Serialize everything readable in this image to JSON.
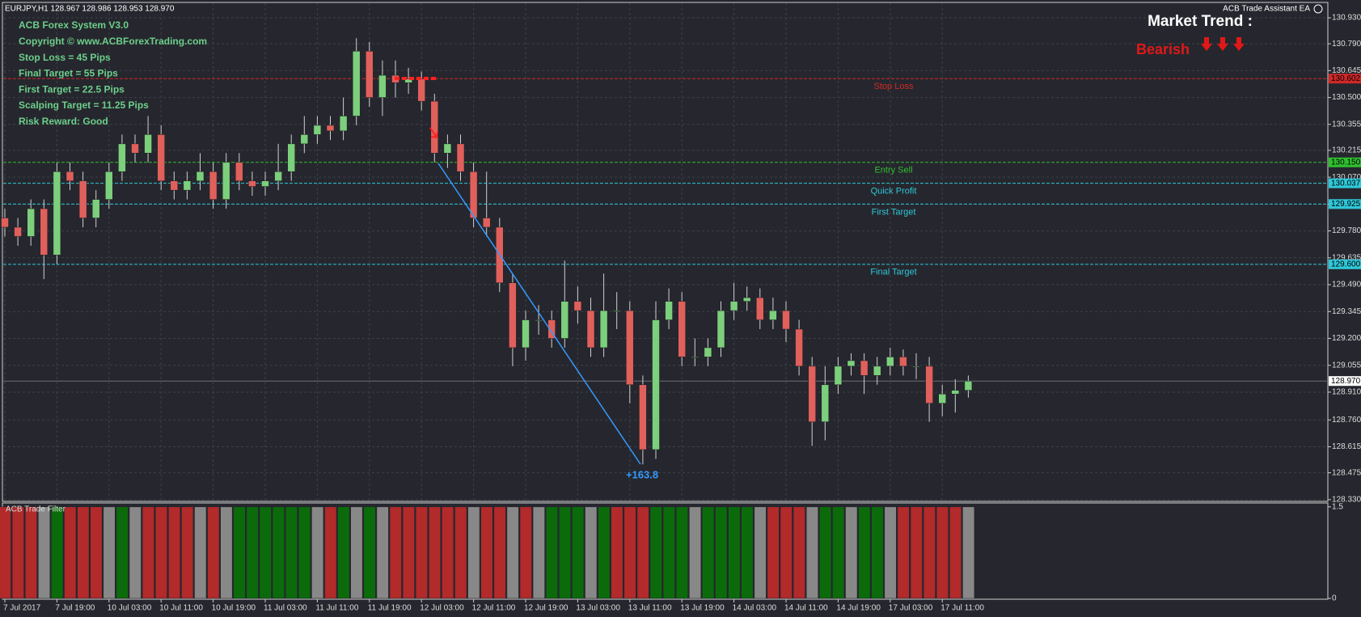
{
  "header": "EURJPY,H1  128.967 128.986 128.953 128.970",
  "ea_name": "ACB Trade Assistant EA",
  "market_trend": "Market Trend :",
  "trend": "Bearish",
  "info": [
    "ACB Forex System V3.0",
    "Copyright ©  www.ACBForexTrading.com",
    "Stop Loss = 45 Pips",
    "Final Target = 55 Pips",
    "First Target = 22.5 Pips",
    "Scalping Target = 11.25 Pips",
    "Risk Reward: Good"
  ],
  "chart_data": [
    {
      "type": "candlestick",
      "categories": [
        "7 Jul 2017",
        null,
        null,
        null,
        "7 Jul 19:00",
        null,
        null,
        null,
        "10 Jul 03:00",
        null,
        null,
        null,
        "10 Jul 11:00",
        null,
        null,
        null,
        "10 Jul 19:00",
        null,
        null,
        null,
        "11 Jul 03:00",
        null,
        null,
        null,
        "11 Jul 11:00",
        null,
        null,
        null,
        "11 Jul 19:00",
        null,
        null,
        null,
        "12 Jul 03:00",
        null,
        null,
        null,
        "12 Jul 11:00",
        null,
        null,
        null,
        "12 Jul 19:00",
        null,
        null,
        null,
        "13 Jul 03:00",
        null,
        null,
        null,
        "13 Jul 11:00",
        null,
        null,
        null,
        "13 Jul 19:00",
        null,
        null,
        null,
        "14 Jul 03:00",
        null,
        null,
        null,
        "14 Jul 11:00",
        null,
        null,
        null,
        "14 Jul 19:00",
        null,
        null,
        null,
        "17 Jul 03:00",
        null,
        null,
        null,
        "17 Jul 11:00",
        null,
        null
      ],
      "open": [
        129.85,
        129.8,
        129.75,
        129.9,
        129.65,
        130.1,
        130.05,
        129.85,
        129.95,
        130.1,
        130.25,
        130.2,
        130.3,
        130.05,
        130.0,
        130.05,
        130.1,
        129.95,
        130.15,
        130.05,
        130.02,
        130.05,
        130.1,
        130.25,
        130.3,
        130.35,
        130.32,
        130.4,
        130.75,
        130.5,
        130.62,
        130.58,
        130.6,
        130.48,
        130.2,
        130.25,
        130.1,
        129.85,
        129.8,
        129.5,
        129.15,
        129.3,
        129.3,
        129.2,
        129.4,
        129.35,
        129.15,
        129.35,
        129.35,
        128.95,
        128.6,
        129.3,
        129.4,
        129.1,
        129.1,
        129.15,
        129.35,
        129.4,
        129.42,
        129.3,
        129.35,
        129.25,
        129.05,
        128.75,
        128.95,
        129.05,
        129.08,
        129.0,
        129.05,
        129.1,
        129.05,
        129.05,
        128.85,
        128.9,
        128.92
      ],
      "high": [
        129.9,
        129.85,
        129.95,
        129.95,
        130.15,
        130.15,
        130.1,
        130.0,
        130.15,
        130.3,
        130.3,
        130.4,
        130.35,
        130.1,
        130.1,
        130.2,
        130.15,
        130.2,
        130.2,
        130.1,
        130.1,
        130.25,
        130.3,
        130.4,
        130.4,
        130.4,
        130.5,
        130.82,
        130.8,
        130.7,
        130.7,
        130.66,
        130.64,
        130.52,
        130.3,
        130.3,
        130.15,
        130.1,
        129.85,
        129.55,
        129.35,
        129.38,
        129.35,
        129.62,
        129.48,
        129.42,
        129.55,
        129.45,
        129.4,
        129.0,
        129.4,
        129.47,
        129.45,
        129.2,
        129.2,
        129.4,
        129.5,
        129.48,
        129.47,
        129.42,
        129.4,
        129.3,
        129.1,
        129.05,
        129.1,
        129.12,
        129.12,
        129.1,
        129.15,
        129.14,
        129.12,
        129.1,
        128.95,
        128.98,
        129.0
      ],
      "low": [
        129.75,
        129.7,
        129.7,
        129.52,
        129.6,
        130.0,
        129.8,
        129.8,
        129.9,
        130.05,
        130.15,
        130.15,
        130.0,
        129.95,
        129.95,
        130.0,
        129.9,
        129.9,
        130.0,
        129.97,
        129.97,
        130.0,
        130.05,
        130.2,
        130.25,
        130.27,
        130.27,
        130.35,
        130.45,
        130.4,
        130.5,
        130.52,
        130.43,
        130.15,
        130.12,
        130.05,
        129.8,
        129.75,
        129.45,
        129.05,
        129.08,
        129.22,
        129.15,
        129.15,
        129.28,
        129.1,
        129.1,
        129.25,
        128.85,
        128.52,
        128.55,
        129.25,
        129.05,
        129.05,
        129.05,
        129.1,
        129.3,
        129.35,
        129.25,
        129.25,
        129.18,
        129.0,
        128.62,
        128.65,
        128.9,
        129.0,
        128.9,
        128.95,
        129.0,
        129.0,
        128.98,
        128.75,
        128.78,
        128.8,
        128.88
      ],
      "close": [
        129.8,
        129.75,
        129.9,
        129.65,
        130.1,
        130.05,
        129.85,
        129.95,
        130.1,
        130.25,
        130.2,
        130.3,
        130.05,
        130.0,
        130.05,
        130.1,
        129.95,
        130.15,
        130.05,
        130.02,
        130.05,
        130.1,
        130.25,
        130.3,
        130.35,
        130.32,
        130.4,
        130.75,
        130.5,
        130.62,
        130.58,
        130.6,
        130.48,
        130.2,
        130.25,
        130.1,
        129.85,
        129.8,
        129.5,
        129.15,
        129.3,
        129.3,
        129.2,
        129.4,
        129.35,
        129.15,
        129.35,
        129.35,
        128.95,
        128.6,
        129.3,
        129.4,
        129.1,
        129.1,
        129.15,
        129.35,
        129.4,
        129.42,
        129.3,
        129.35,
        129.25,
        129.05,
        128.75,
        128.95,
        129.05,
        129.08,
        129.0,
        129.05,
        129.1,
        129.05,
        129.05,
        128.85,
        128.9,
        128.92,
        128.97
      ],
      "up_color": "#7ccf7c",
      "down_color": "#e0605c",
      "wick_color": "#d0d0d0",
      "ylim": [
        128.325,
        131.0
      ],
      "yticks": [
        {
          "value": 130.93,
          "label": "130.930"
        },
        {
          "value": 130.79,
          "label": "130.790"
        },
        130.645,
        {
          "value": 130.5,
          "label": "130.500"
        },
        130.355,
        130.215,
        {
          "value": 130.07,
          "label": "130.070"
        },
        129.925,
        {
          "value": 129.78,
          "label": "129.780"
        },
        129.635,
        {
          "value": 129.49,
          "label": "129.490"
        },
        129.345,
        {
          "value": 129.2,
          "label": "129.200"
        },
        129.055,
        {
          "value": 128.91,
          "label": "128.910"
        },
        {
          "value": 128.76,
          "label": "128.760"
        },
        128.615,
        128.475,
        {
          "value": 128.33,
          "label": "128.330"
        }
      ],
      "grid": true,
      "levels": [
        {
          "name": "Stop Loss",
          "price": 130.602,
          "color": "#d02828"
        },
        {
          "name": "Entry Sell",
          "price": {
            "value": 130.15,
            "label": "130.150"
          },
          "color": "#2fbf2f"
        },
        {
          "name": "Quick Profit",
          "price": 130.037,
          "color": "#2ec8d8"
        },
        {
          "name": "First Target",
          "price": 129.925,
          "color": "#2ec8d8"
        },
        {
          "name": "Final Target",
          "price": {
            "value": 129.6,
            "label": "129.600"
          },
          "color": "#2ec8d8"
        }
      ],
      "current": {
        "value": 128.97,
        "label": "128.970"
      },
      "annotation": "+163.8"
    },
    {
      "type": "bar",
      "title": "ACB Trade Filter",
      "values": [
        1.5,
        1.5,
        1.5,
        1.5,
        1.5,
        1.5,
        1.5,
        1.5,
        1.5,
        1.5,
        1.5,
        1.5,
        1.5,
        1.5,
        1.5,
        1.5,
        1.5,
        1.5,
        1.5,
        1.5,
        1.5,
        1.5,
        1.5,
        1.5,
        1.5,
        1.5,
        1.5,
        1.5,
        1.5,
        1.5,
        1.5,
        1.5,
        1.5,
        1.5,
        1.5,
        1.5,
        1.5,
        1.5,
        1.5,
        1.5,
        1.5,
        1.5,
        1.5,
        1.5,
        1.5,
        1.5,
        1.5,
        1.5,
        1.5,
        1.5,
        1.5,
        1.5,
        1.5,
        1.5,
        1.5,
        1.5,
        1.5,
        1.5,
        1.5,
        1.5,
        1.5,
        1.5,
        1.5,
        1.5,
        1.5,
        1.5,
        1.5,
        1.5,
        1.5,
        1.5,
        1.5,
        1.5,
        1.5,
        1.5,
        1.5
      ],
      "colors": [
        "#b22a2a",
        "#b22a2a",
        "#b22a2a",
        "#888888",
        "#0b6b0b",
        "#b22a2a",
        "#b22a2a",
        "#b22a2a",
        "#888888",
        "#0b6b0b",
        "#888888",
        "#b22a2a",
        "#b22a2a",
        "#b22a2a",
        "#b22a2a",
        "#888888",
        "#b22a2a",
        "#888888",
        "#0b6b0b",
        "#0b6b0b",
        "#0b6b0b",
        "#0b6b0b",
        "#0b6b0b",
        "#0b6b0b",
        "#888888",
        "#b22a2a",
        "#0b6b0b",
        "#888888",
        "#0b6b0b",
        "#888888",
        "#b22a2a",
        "#b22a2a",
        "#b22a2a",
        "#b22a2a",
        "#b22a2a",
        "#b22a2a",
        "#888888",
        "#b22a2a",
        "#b22a2a",
        "#888888",
        "#b22a2a",
        "#888888",
        "#0b6b0b",
        "#0b6b0b",
        "#0b6b0b",
        "#888888",
        "#0b6b0b",
        "#b22a2a",
        "#b22a2a",
        "#b22a2a",
        "#0b6b0b",
        "#0b6b0b",
        "#0b6b0b",
        "#888888",
        "#0b6b0b",
        "#0b6b0b",
        "#0b6b0b",
        "#0b6b0b",
        "#888888",
        "#b22a2a",
        "#b22a2a",
        "#b22a2a",
        "#888888",
        "#0b6b0b",
        "#0b6b0b",
        "#888888",
        "#0b6b0b",
        "#0b6b0b",
        "#888888",
        "#b22a2a",
        "#b22a2a",
        "#b22a2a",
        "#b22a2a",
        "#b22a2a",
        "#888888"
      ],
      "ylim": [
        0,
        1.55
      ],
      "yticks": [
        1.5,
        0
      ]
    }
  ]
}
